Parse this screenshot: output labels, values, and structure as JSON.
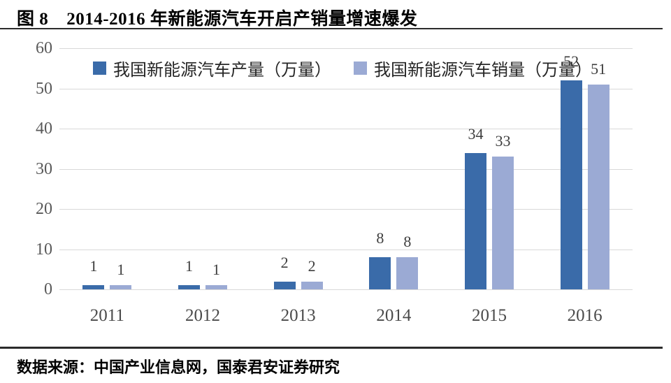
{
  "figure": {
    "title_prefix": "图 8",
    "title_text": "2014-2016 年新能源汽车开启产销量增速爆发",
    "source_note": "数据来源：中国产业信息网，国泰君安证券研究"
  },
  "chart_data": {
    "type": "bar",
    "title": "2014-2016 年新能源汽车开启产销量增速爆发",
    "categories": [
      "2011",
      "2012",
      "2013",
      "2014",
      "2015",
      "2016"
    ],
    "series": [
      {
        "name": "我国新能源汽车产量（万量）",
        "values": [
          1,
          1,
          2,
          8,
          34,
          52
        ],
        "color": "#3a6ba9"
      },
      {
        "name": "我国新能源汽车销量（万量）",
        "values": [
          1,
          1,
          2,
          8,
          33,
          51
        ],
        "color": "#9baad4"
      }
    ],
    "xlabel": "",
    "ylabel": "",
    "ylim": [
      0,
      60
    ],
    "ytick_step": 10,
    "yticks": [
      0,
      10,
      20,
      30,
      40,
      50,
      60
    ],
    "grid": true,
    "gridline_color": "#d8d8d8",
    "legend_position": "top",
    "data_labels_shown": true
  }
}
